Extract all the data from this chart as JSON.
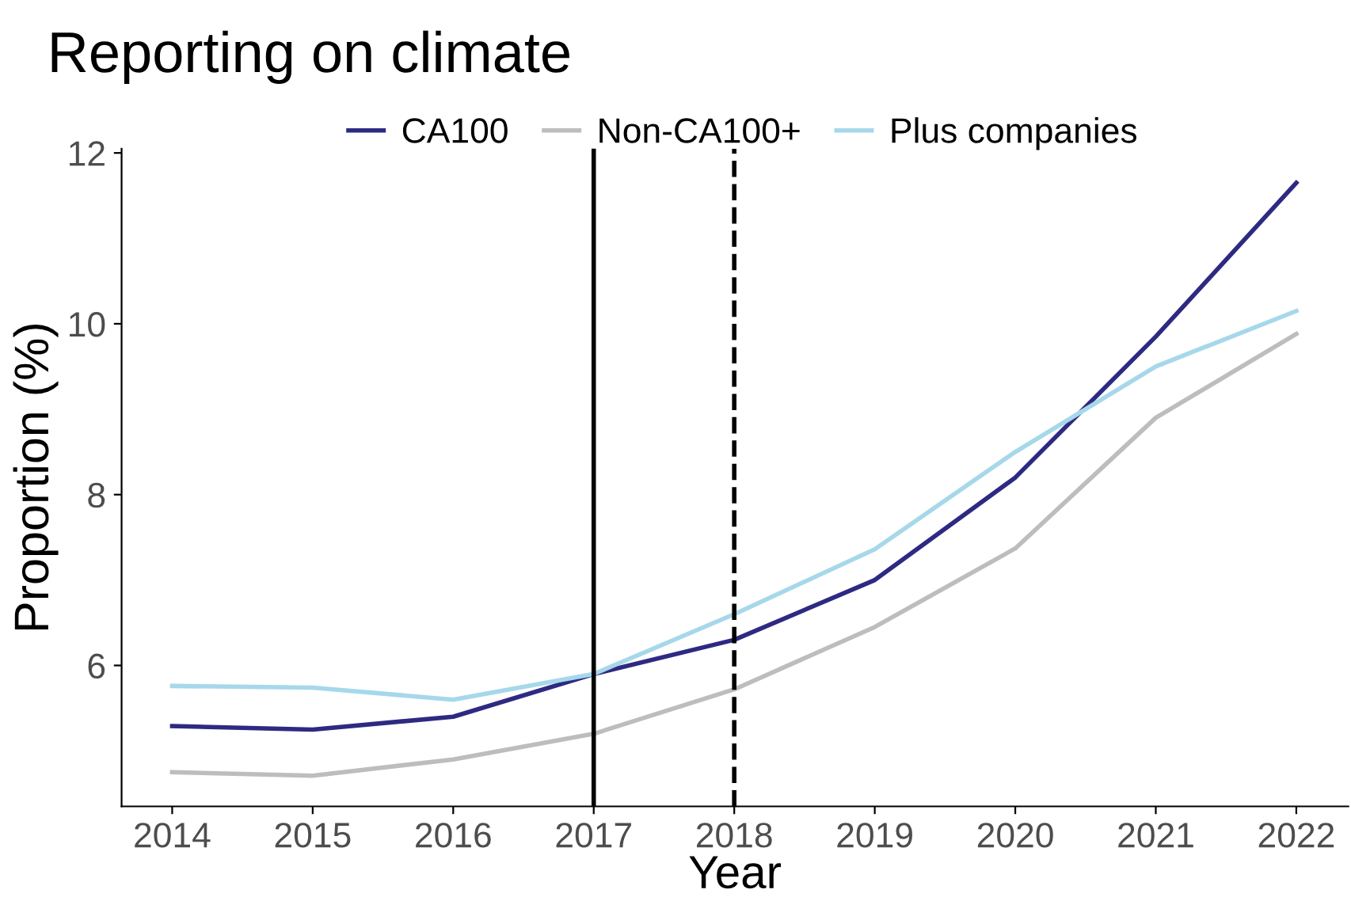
{
  "chart_data": {
    "type": "line",
    "title": "Reporting on climate",
    "xlabel": "Year",
    "ylabel": "Proportion (%)",
    "x": [
      2014,
      2015,
      2016,
      2017,
      2018,
      2019,
      2020,
      2021,
      2022
    ],
    "series": [
      {
        "name": "CA100",
        "color": "#2e2a82",
        "values": [
          5.29,
          5.25,
          5.4,
          5.9,
          6.3,
          7.0,
          8.2,
          9.85,
          11.65
        ]
      },
      {
        "name": "Non-CA100+",
        "color": "#bdbdbd",
        "values": [
          4.75,
          4.71,
          4.9,
          5.2,
          5.72,
          6.45,
          7.37,
          8.9,
          9.88
        ]
      },
      {
        "name": "Plus companies",
        "color": "#a6d8ea",
        "values": [
          5.76,
          5.74,
          5.6,
          5.9,
          6.6,
          7.36,
          8.5,
          9.5,
          10.15
        ]
      }
    ],
    "xlim": [
      2013.64,
      2022.37
    ],
    "ylim": [
      4.35,
      12.05
    ],
    "xticks": [
      2014,
      2015,
      2016,
      2017,
      2018,
      2019,
      2020,
      2021,
      2022
    ],
    "yticks": [
      6,
      8,
      10,
      12
    ],
    "ref_lines": [
      {
        "axis": "x",
        "value": 2017,
        "color": "#000000",
        "line_style": "solid"
      },
      {
        "axis": "x",
        "value": 2018,
        "color": "#000000",
        "line_style": "dashed"
      }
    ],
    "grid": false,
    "legend": "top",
    "marker": "none",
    "line_style": "solid"
  }
}
